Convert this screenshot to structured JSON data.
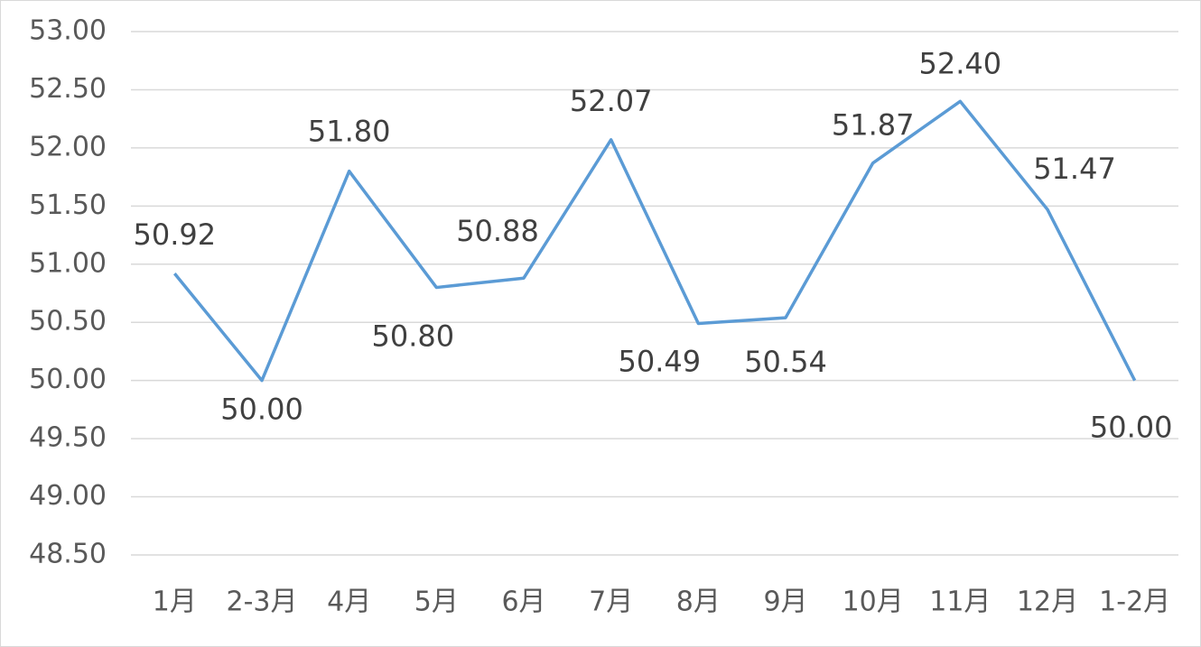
{
  "chart_data": {
    "type": "line",
    "categories": [
      "1月",
      "2-3月",
      "4月",
      "5月",
      "6月",
      "7月",
      "8月",
      "9月",
      "10月",
      "11月",
      "12月",
      "1-2月"
    ],
    "series": [
      {
        "color": "#5b9bd5",
        "values": [
          50.92,
          50.0,
          51.8,
          50.8,
          50.88,
          52.07,
          50.49,
          50.54,
          51.87,
          52.4,
          51.47,
          50.0
        ],
        "value_labels": [
          "50.92",
          "50.00",
          "51.80",
          "50.80",
          "50.88",
          "52.07",
          "50.49",
          "50.54",
          "51.87",
          "52.40",
          "51.47",
          "50.00"
        ]
      }
    ],
    "ylim": [
      48.5,
      53.0
    ],
    "yticks": [
      {
        "value": 48.5,
        "label": "48.50"
      },
      {
        "value": 49.0,
        "label": "49.00"
      },
      {
        "value": 49.5,
        "label": "49.50"
      },
      {
        "value": 50.0,
        "label": "50.00"
      },
      {
        "value": 50.5,
        "label": "50.50"
      },
      {
        "value": 51.0,
        "label": "51.00"
      },
      {
        "value": 51.5,
        "label": "51.50"
      },
      {
        "value": 52.0,
        "label": "52.00"
      },
      {
        "value": 52.5,
        "label": "52.50"
      },
      {
        "value": 53.0,
        "label": "53.00"
      }
    ],
    "grid": true
  }
}
